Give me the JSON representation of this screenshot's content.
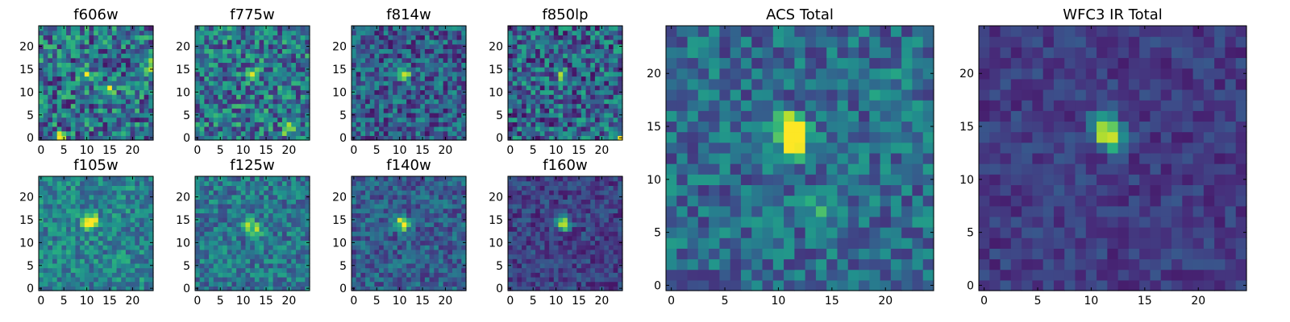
{
  "chart_data": {
    "type": "heatmap",
    "colormap": "viridis",
    "panels": [
      {
        "title": "f606w",
        "grid": 25,
        "x_ticks": [
          "0",
          "5",
          "10",
          "15",
          "20"
        ],
        "y_ticks": [
          "0",
          "5",
          "10",
          "15",
          "20"
        ],
        "xlim": [
          0,
          24
        ],
        "ylim": [
          0,
          24
        ],
        "peaks": [
          [
            15,
            11,
            0.55
          ],
          [
            24,
            16,
            0.45
          ],
          [
            4,
            0,
            0.55
          ],
          [
            10,
            14,
            0.4
          ]
        ],
        "noise_mean": 0.38,
        "noise_amp": 0.32,
        "seed": 11
      },
      {
        "title": "f775w",
        "grid": 25,
        "x_ticks": [
          "0",
          "5",
          "10",
          "15",
          "20"
        ],
        "y_ticks": [
          "0",
          "5",
          "10",
          "15",
          "20"
        ],
        "xlim": [
          0,
          24
        ],
        "ylim": [
          0,
          24
        ],
        "peaks": [
          [
            12,
            14,
            0.55
          ],
          [
            20,
            2,
            0.5
          ]
        ],
        "noise_mean": 0.4,
        "noise_amp": 0.3,
        "seed": 23
      },
      {
        "title": "f814w",
        "grid": 25,
        "x_ticks": [
          "0",
          "5",
          "10",
          "15",
          "20"
        ],
        "y_ticks": [
          "0",
          "5",
          "10",
          "15",
          "20"
        ],
        "xlim": [
          0,
          24
        ],
        "ylim": [
          0,
          24
        ],
        "peaks": [
          [
            11,
            14,
            0.7
          ]
        ],
        "noise_mean": 0.3,
        "noise_amp": 0.25,
        "seed": 37
      },
      {
        "title": "f850lp",
        "grid": 25,
        "x_ticks": [
          "0",
          "5",
          "10",
          "15",
          "20"
        ],
        "y_ticks": [
          "0",
          "5",
          "10",
          "15",
          "20"
        ],
        "xlim": [
          0,
          24
        ],
        "ylim": [
          0,
          24
        ],
        "peaks": [
          [
            11,
            14,
            0.45
          ],
          [
            24,
            0,
            0.6
          ]
        ],
        "noise_mean": 0.33,
        "noise_amp": 0.3,
        "seed": 41
      },
      {
        "title": "f105w",
        "grid": 25,
        "x_ticks": [
          "0",
          "5",
          "10",
          "15",
          "20"
        ],
        "y_ticks": [
          "0",
          "5",
          "10",
          "15",
          "20"
        ],
        "xlim": [
          0,
          24
        ],
        "ylim": [
          0,
          24
        ],
        "peaks": [
          [
            11,
            15,
            0.6
          ],
          [
            10,
            14,
            0.4
          ]
        ],
        "noise_mean": 0.45,
        "noise_amp": 0.2,
        "seed": 53
      },
      {
        "title": "f125w",
        "grid": 25,
        "x_ticks": [
          "0",
          "5",
          "10",
          "15",
          "20"
        ],
        "y_ticks": [
          "0",
          "5",
          "10",
          "15",
          "20"
        ],
        "xlim": [
          0,
          24
        ],
        "ylim": [
          0,
          24
        ],
        "peaks": [
          [
            11,
            14,
            0.5
          ],
          [
            13,
            13,
            0.45
          ]
        ],
        "noise_mean": 0.4,
        "noise_amp": 0.2,
        "seed": 67
      },
      {
        "title": "f140w",
        "grid": 25,
        "x_ticks": [
          "0",
          "5",
          "10",
          "15",
          "20"
        ],
        "y_ticks": [
          "0",
          "5",
          "10",
          "15",
          "20"
        ],
        "xlim": [
          0,
          24
        ],
        "ylim": [
          0,
          24
        ],
        "peaks": [
          [
            11,
            14,
            0.6
          ],
          [
            10,
            15,
            0.3
          ]
        ],
        "noise_mean": 0.3,
        "noise_amp": 0.18,
        "seed": 71
      },
      {
        "title": "f160w",
        "grid": 25,
        "x_ticks": [
          "0",
          "5",
          "10",
          "15",
          "20"
        ],
        "y_ticks": [
          "0",
          "5",
          "10",
          "15",
          "20"
        ],
        "xlim": [
          0,
          24
        ],
        "ylim": [
          0,
          24
        ],
        "peaks": [
          [
            12,
            14,
            0.65
          ],
          [
            11,
            15,
            0.4
          ]
        ],
        "noise_mean": 0.2,
        "noise_amp": 0.14,
        "seed": 83
      },
      {
        "title": "ACS Total",
        "grid": 25,
        "x_ticks": [
          "0",
          "5",
          "10",
          "15",
          "20"
        ],
        "y_ticks": [
          "0",
          "5",
          "10",
          "15",
          "20"
        ],
        "xlim": [
          0,
          24
        ],
        "ylim": [
          0,
          24
        ],
        "peaks": [
          [
            11,
            15,
            0.6
          ],
          [
            12,
            14,
            0.5
          ],
          [
            11,
            13,
            0.4
          ],
          [
            14,
            7,
            0.3
          ],
          [
            20,
            19,
            0.2
          ]
        ],
        "noise_mean": 0.35,
        "noise_amp": 0.2,
        "seed": 97
      },
      {
        "title": "WFC3 IR Total",
        "grid": 25,
        "x_ticks": [
          "0",
          "5",
          "10",
          "15",
          "20"
        ],
        "y_ticks": [
          "0",
          "5",
          "10",
          "15",
          "20"
        ],
        "xlim": [
          0,
          24
        ],
        "ylim": [
          0,
          24
        ],
        "peaks": [
          [
            12,
            14,
            0.7
          ],
          [
            11,
            15,
            0.45
          ]
        ],
        "noise_mean": 0.18,
        "noise_amp": 0.1,
        "seed": 101
      }
    ]
  }
}
